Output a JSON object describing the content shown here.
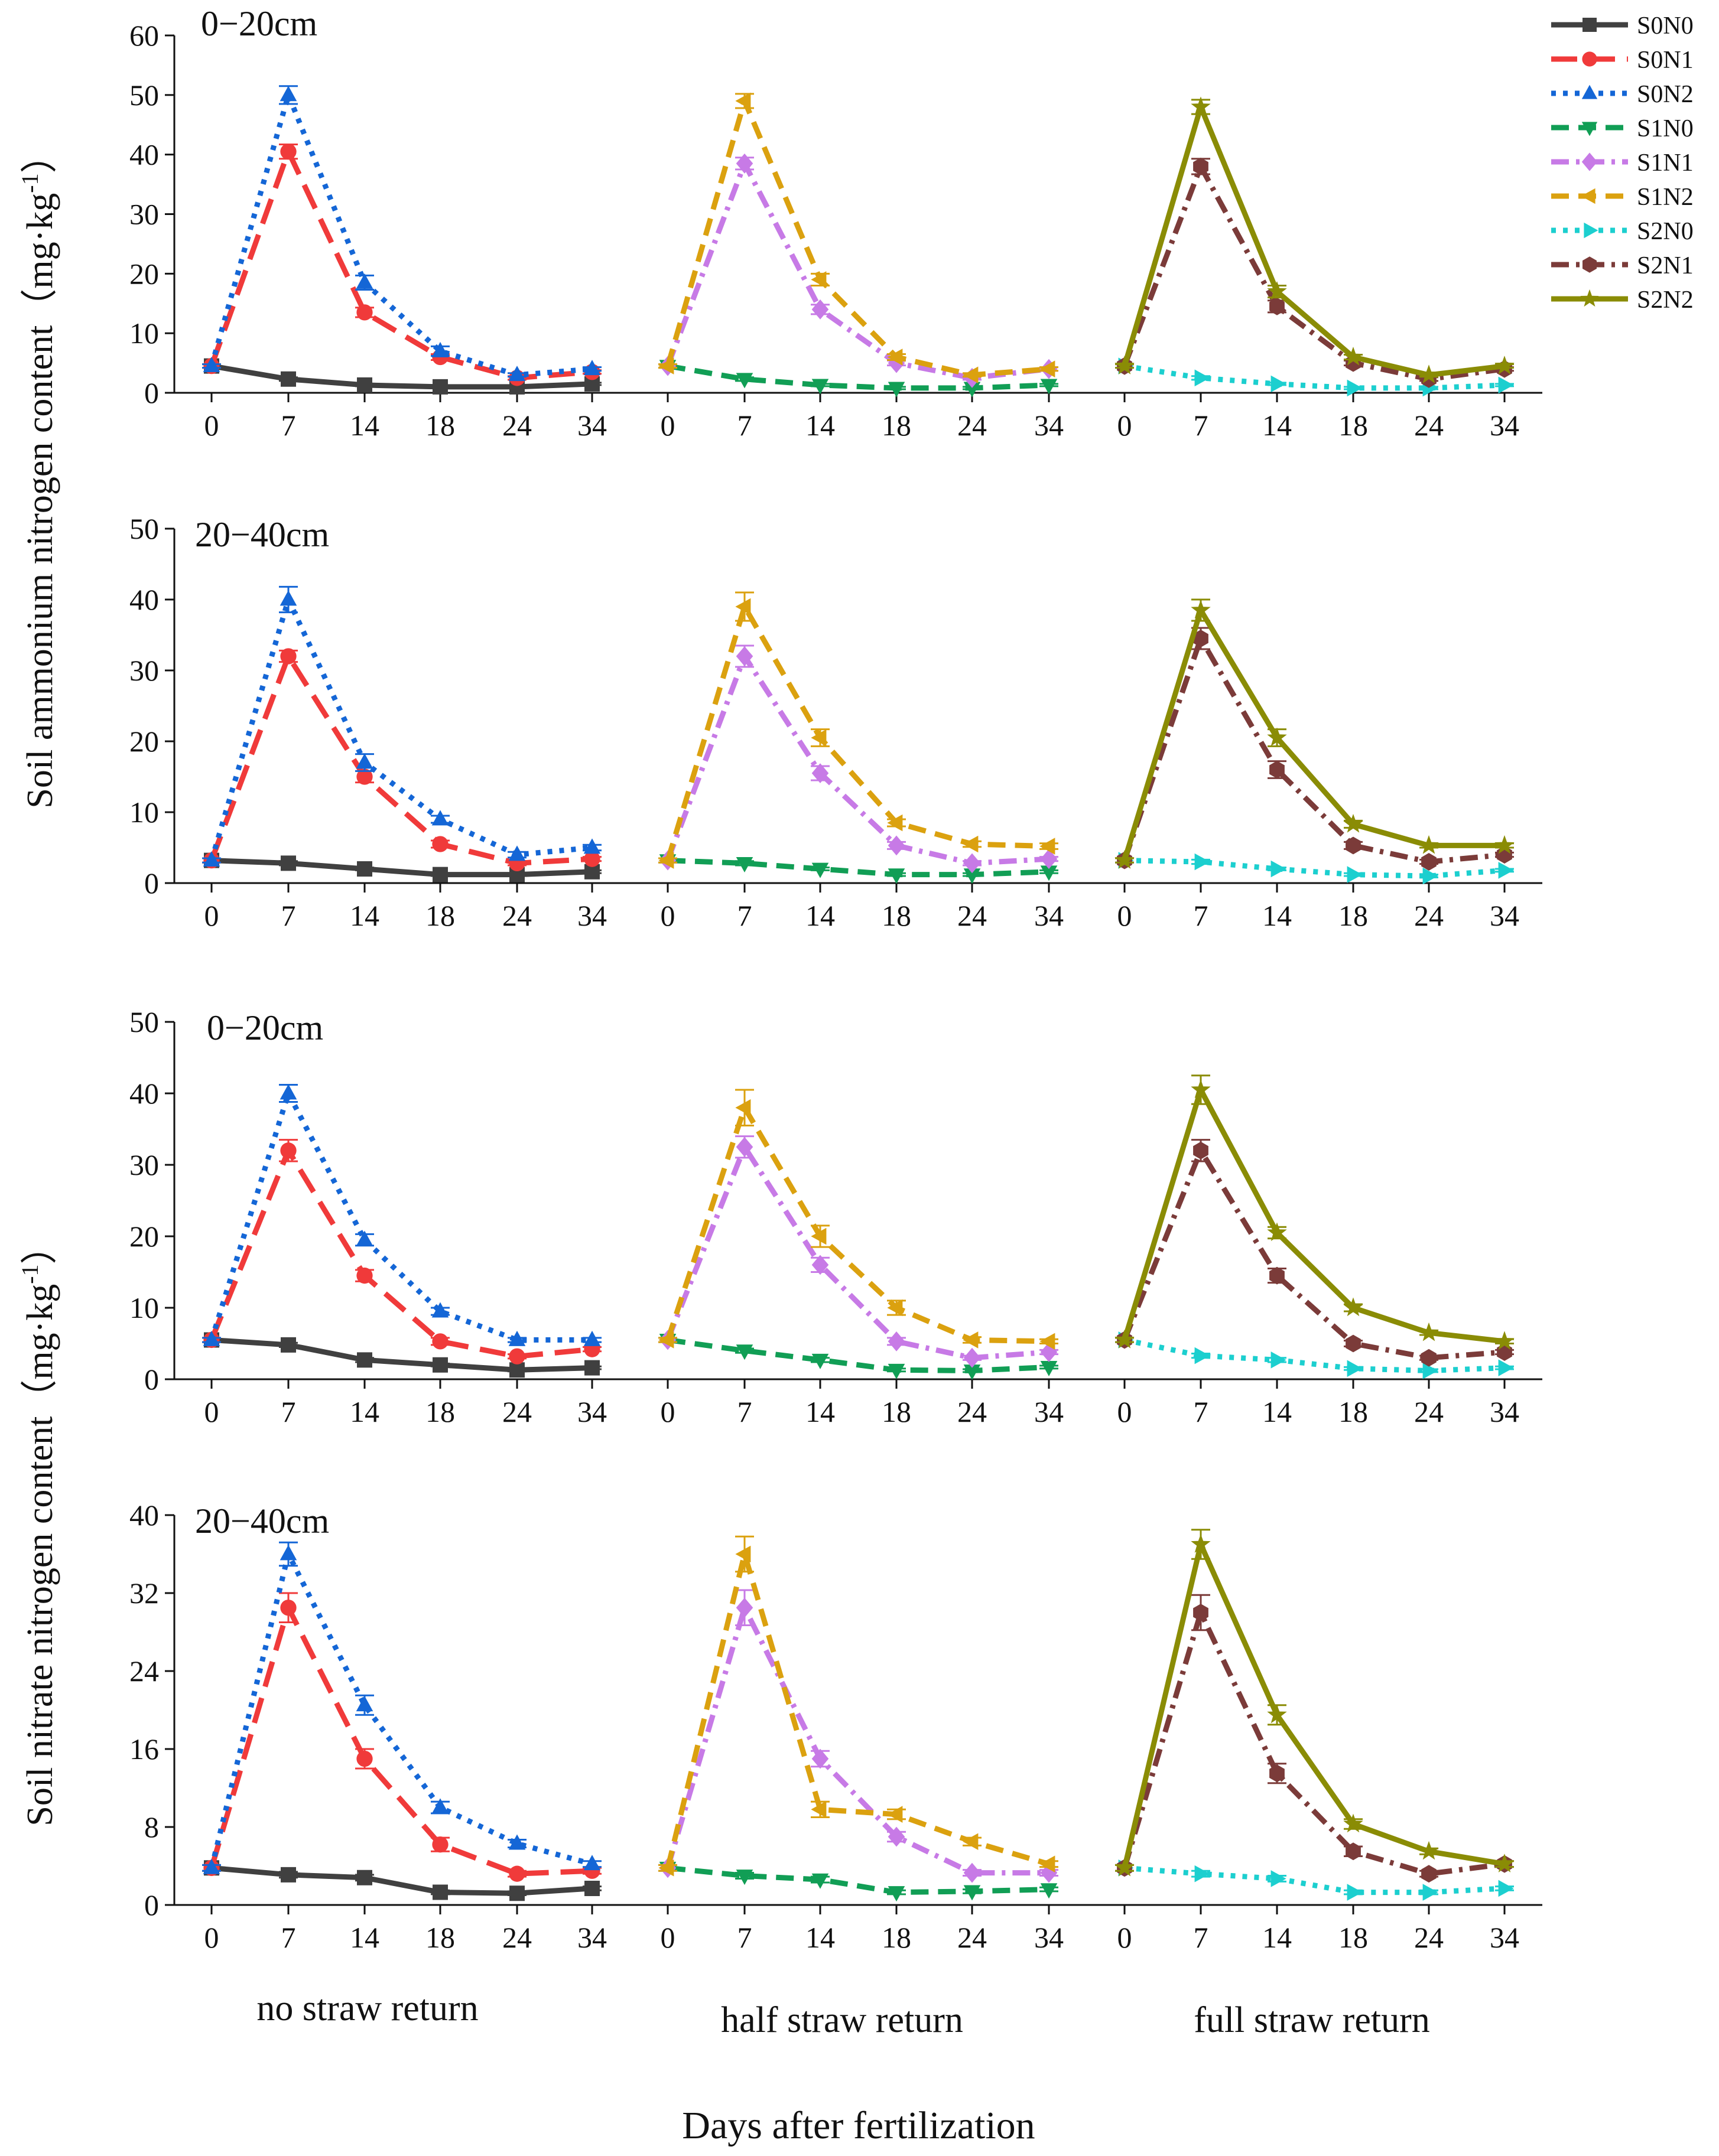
{
  "figure": {
    "xlabel": "Days after fertilization",
    "ylabel_ammonium": "Soil ammonium nitrogen content（mg·kg",
    "ylabel_nitrate": "Soil nitrate nitrogen content（mg·kg",
    "unit_sup": "-1",
    "unit_close": "）",
    "group_labels": [
      "no straw return",
      "half straw return",
      "full straw return"
    ]
  },
  "legend": [
    {
      "name": "S0N0",
      "color": "#404040",
      "dash": "solid",
      "marker": "square"
    },
    {
      "name": "S0N1",
      "color": "#f03a3a",
      "dash": "longdash",
      "marker": "circle"
    },
    {
      "name": "S0N2",
      "color": "#1466d6",
      "dash": "dot",
      "marker": "triangle"
    },
    {
      "name": "S1N0",
      "color": "#119e55",
      "dash": "dash",
      "marker": "triangle-down"
    },
    {
      "name": "S1N1",
      "color": "#c77ae6",
      "dash": "dashdot",
      "marker": "diamond"
    },
    {
      "name": "S1N2",
      "color": "#dba10f",
      "dash": "dash",
      "marker": "triangle-left"
    },
    {
      "name": "S2N0",
      "color": "#1ccfcf",
      "dash": "dot",
      "marker": "triangle-right"
    },
    {
      "name": "S2N1",
      "color": "#7b3b39",
      "dash": "dashdot",
      "marker": "hexagon"
    },
    {
      "name": "S2N2",
      "color": "#8a8c05",
      "dash": "solid",
      "marker": "star"
    }
  ],
  "chart_data": [
    {
      "type": "line",
      "title": "0−20cm",
      "measure": "Soil ammonium nitrogen content",
      "ylim": [
        0,
        60
      ],
      "yticks": [
        "0",
        "10",
        "20",
        "30",
        "40",
        "50",
        "60"
      ],
      "x": [
        "0",
        "7",
        "14",
        "18",
        "24",
        "34"
      ],
      "series": [
        {
          "name": "S0N0",
          "group": 0,
          "values": [
            4.5,
            2.3,
            1.3,
            1.0,
            1.0,
            1.5
          ],
          "errors": [
            0.3,
            0.3,
            0.2,
            0.2,
            0.2,
            0.2
          ]
        },
        {
          "name": "S0N1",
          "group": 0,
          "values": [
            4.5,
            40.5,
            13.5,
            6.0,
            2.5,
            3.5
          ],
          "errors": [
            0.3,
            1.2,
            0.8,
            0.5,
            0.3,
            0.3
          ]
        },
        {
          "name": "S0N2",
          "group": 0,
          "values": [
            4.5,
            50.0,
            18.5,
            7.0,
            3.0,
            4.0
          ],
          "errors": [
            0.3,
            1.5,
            1.2,
            0.8,
            0.3,
            0.3
          ]
        },
        {
          "name": "S1N0",
          "group": 1,
          "values": [
            4.5,
            2.3,
            1.3,
            0.8,
            0.8,
            1.3
          ],
          "errors": [
            0.3,
            0.3,
            0.2,
            0.2,
            0.2,
            0.2
          ]
        },
        {
          "name": "S1N1",
          "group": 1,
          "values": [
            4.5,
            38.5,
            14.0,
            5.0,
            2.5,
            4.0
          ],
          "errors": [
            0.3,
            1.0,
            0.8,
            0.4,
            0.3,
            0.3
          ]
        },
        {
          "name": "S1N2",
          "group": 1,
          "values": [
            4.5,
            49.0,
            19.0,
            6.0,
            3.0,
            4.0
          ],
          "errors": [
            0.3,
            1.2,
            1.0,
            0.5,
            0.3,
            0.3
          ]
        },
        {
          "name": "S2N0",
          "group": 2,
          "values": [
            4.5,
            2.5,
            1.5,
            0.8,
            0.8,
            1.3
          ],
          "errors": [
            0.3,
            0.3,
            0.2,
            0.2,
            0.2,
            0.2
          ]
        },
        {
          "name": "S2N1",
          "group": 2,
          "values": [
            4.5,
            38.0,
            14.5,
            5.0,
            2.3,
            4.0
          ],
          "errors": [
            0.3,
            1.3,
            1.0,
            0.4,
            0.3,
            0.3
          ]
        },
        {
          "name": "S2N2",
          "group": 2,
          "values": [
            4.5,
            48.0,
            17.0,
            6.0,
            3.0,
            4.5
          ],
          "errors": [
            0.3,
            1.2,
            1.0,
            0.4,
            0.3,
            0.3
          ]
        }
      ]
    },
    {
      "type": "line",
      "title": "20−40cm",
      "measure": "Soil ammonium nitrogen content",
      "ylim": [
        0,
        50
      ],
      "yticks": [
        "0",
        "10",
        "20",
        "30",
        "40",
        "50"
      ],
      "x": [
        "0",
        "7",
        "14",
        "18",
        "24",
        "34"
      ],
      "series": [
        {
          "name": "S0N0",
          "group": 0,
          "values": [
            3.2,
            2.8,
            2.0,
            1.2,
            1.2,
            1.6
          ],
          "errors": [
            0.3,
            0.3,
            0.2,
            0.2,
            0.2,
            0.2
          ]
        },
        {
          "name": "S0N1",
          "group": 0,
          "values": [
            3.2,
            32.0,
            15.0,
            5.5,
            2.8,
            3.4
          ],
          "errors": [
            0.3,
            0.8,
            0.8,
            0.5,
            0.3,
            0.3
          ]
        },
        {
          "name": "S0N2",
          "group": 0,
          "values": [
            3.2,
            40.0,
            17.0,
            9.0,
            4.0,
            5.0
          ],
          "errors": [
            0.3,
            1.8,
            1.2,
            0.5,
            0.4,
            0.4
          ]
        },
        {
          "name": "S1N0",
          "group": 1,
          "values": [
            3.2,
            2.8,
            2.0,
            1.2,
            1.2,
            1.6
          ],
          "errors": [
            0.3,
            0.3,
            0.2,
            0.2,
            0.2,
            0.2
          ]
        },
        {
          "name": "S1N1",
          "group": 1,
          "values": [
            3.2,
            32.0,
            15.5,
            5.3,
            2.8,
            3.4
          ],
          "errors": [
            0.3,
            1.5,
            1.0,
            0.5,
            0.3,
            0.3
          ]
        },
        {
          "name": "S1N2",
          "group": 1,
          "values": [
            3.2,
            39.0,
            20.5,
            8.5,
            5.5,
            5.2
          ],
          "errors": [
            0.3,
            2.0,
            1.2,
            0.5,
            0.4,
            0.4
          ]
        },
        {
          "name": "S2N0",
          "group": 2,
          "values": [
            3.2,
            3.0,
            2.0,
            1.2,
            1.0,
            1.8
          ],
          "errors": [
            0.3,
            0.3,
            0.2,
            0.2,
            0.2,
            0.2
          ]
        },
        {
          "name": "S2N1",
          "group": 2,
          "values": [
            3.2,
            34.5,
            16.0,
            5.3,
            3.0,
            4.0
          ],
          "errors": [
            0.3,
            1.5,
            1.2,
            0.5,
            0.3,
            0.3
          ]
        },
        {
          "name": "S2N2",
          "group": 2,
          "values": [
            3.2,
            38.5,
            20.5,
            8.3,
            5.3,
            5.3
          ],
          "errors": [
            0.3,
            1.5,
            1.2,
            0.5,
            0.3,
            0.3
          ]
        }
      ]
    },
    {
      "type": "line",
      "title": "0−20cm",
      "measure": "Soil nitrate nitrogen content",
      "ylim": [
        0,
        50
      ],
      "yticks": [
        "0",
        "10",
        "20",
        "30",
        "40",
        "50"
      ],
      "x": [
        "0",
        "7",
        "14",
        "18",
        "24",
        "34"
      ],
      "series": [
        {
          "name": "S0N0",
          "group": 0,
          "values": [
            5.5,
            4.8,
            2.7,
            2.0,
            1.3,
            1.6
          ],
          "errors": [
            0.3,
            0.3,
            0.3,
            0.2,
            0.2,
            0.2
          ]
        },
        {
          "name": "S0N1",
          "group": 0,
          "values": [
            5.5,
            32.0,
            14.5,
            5.3,
            3.2,
            4.2
          ],
          "errors": [
            0.3,
            1.5,
            0.8,
            0.5,
            0.3,
            0.3
          ]
        },
        {
          "name": "S0N2",
          "group": 0,
          "values": [
            5.5,
            40.0,
            19.5,
            9.5,
            5.5,
            5.5
          ],
          "errors": [
            0.3,
            1.2,
            0.8,
            0.5,
            0.3,
            0.3
          ]
        },
        {
          "name": "S1N0",
          "group": 1,
          "values": [
            5.5,
            4.0,
            2.7,
            1.3,
            1.2,
            1.7
          ],
          "errors": [
            0.3,
            0.3,
            0.3,
            0.2,
            0.2,
            0.2
          ]
        },
        {
          "name": "S1N1",
          "group": 1,
          "values": [
            5.5,
            32.5,
            16.0,
            5.3,
            3.0,
            3.8
          ],
          "errors": [
            0.3,
            1.5,
            1.0,
            0.5,
            0.3,
            0.3
          ]
        },
        {
          "name": "S1N2",
          "group": 1,
          "values": [
            5.5,
            38.0,
            20.0,
            10.0,
            5.5,
            5.3
          ],
          "errors": [
            0.3,
            2.5,
            1.5,
            1.0,
            0.4,
            0.3
          ]
        },
        {
          "name": "S2N0",
          "group": 2,
          "values": [
            5.5,
            3.3,
            2.7,
            1.5,
            1.2,
            1.6
          ],
          "errors": [
            0.3,
            0.3,
            0.3,
            0.2,
            0.2,
            0.2
          ]
        },
        {
          "name": "S2N1",
          "group": 2,
          "values": [
            5.5,
            32.0,
            14.5,
            5.0,
            3.0,
            3.8
          ],
          "errors": [
            0.3,
            1.5,
            1.0,
            0.4,
            0.3,
            0.3
          ]
        },
        {
          "name": "S2N2",
          "group": 2,
          "values": [
            5.5,
            40.5,
            20.5,
            10.0,
            6.5,
            5.3
          ],
          "errors": [
            0.3,
            2.0,
            0.8,
            0.5,
            0.3,
            0.3
          ]
        }
      ]
    },
    {
      "type": "line",
      "title": "20−40cm",
      "measure": "Soil nitrate nitrogen content",
      "ylim": [
        0,
        40
      ],
      "yticks": [
        "0",
        "8",
        "16",
        "24",
        "32",
        "40"
      ],
      "x": [
        "0",
        "7",
        "14",
        "18",
        "24",
        "34"
      ],
      "series": [
        {
          "name": "S0N0",
          "group": 0,
          "values": [
            3.8,
            3.1,
            2.8,
            1.3,
            1.2,
            1.7
          ],
          "errors": [
            0.3,
            0.3,
            0.3,
            0.2,
            0.2,
            0.2
          ]
        },
        {
          "name": "S0N1",
          "group": 0,
          "values": [
            3.8,
            30.5,
            15.0,
            6.2,
            3.2,
            3.5
          ],
          "errors": [
            0.3,
            1.5,
            1.0,
            0.7,
            0.3,
            0.3
          ]
        },
        {
          "name": "S0N2",
          "group": 0,
          "values": [
            3.8,
            36.0,
            20.5,
            10.0,
            6.3,
            4.2
          ],
          "errors": [
            0.3,
            1.2,
            1.0,
            0.6,
            0.4,
            0.3
          ]
        },
        {
          "name": "S1N0",
          "group": 1,
          "values": [
            3.8,
            3.0,
            2.6,
            1.3,
            1.4,
            1.6
          ],
          "errors": [
            0.3,
            0.3,
            0.3,
            0.2,
            0.2,
            0.2
          ]
        },
        {
          "name": "S1N1",
          "group": 1,
          "values": [
            3.8,
            30.5,
            15.0,
            7.0,
            3.3,
            3.3
          ],
          "errors": [
            0.3,
            1.8,
            0.8,
            0.5,
            0.3,
            0.3
          ]
        },
        {
          "name": "S1N2",
          "group": 1,
          "values": [
            3.8,
            36.0,
            9.8,
            9.3,
            6.5,
            4.2
          ],
          "errors": [
            0.3,
            1.8,
            0.8,
            0.5,
            0.4,
            0.3
          ]
        },
        {
          "name": "S2N0",
          "group": 2,
          "values": [
            3.8,
            3.2,
            2.7,
            1.3,
            1.3,
            1.7
          ],
          "errors": [
            0.3,
            0.3,
            0.3,
            0.2,
            0.2,
            0.2
          ]
        },
        {
          "name": "S2N1",
          "group": 2,
          "values": [
            3.8,
            30.0,
            13.5,
            5.5,
            3.2,
            4.2
          ],
          "errors": [
            0.3,
            1.8,
            1.0,
            0.5,
            0.3,
            0.3
          ]
        },
        {
          "name": "S2N2",
          "group": 2,
          "values": [
            3.8,
            37.0,
            19.5,
            8.3,
            5.5,
            4.2
          ],
          "errors": [
            0.3,
            1.5,
            1.0,
            0.5,
            0.3,
            0.3
          ]
        }
      ]
    }
  ]
}
